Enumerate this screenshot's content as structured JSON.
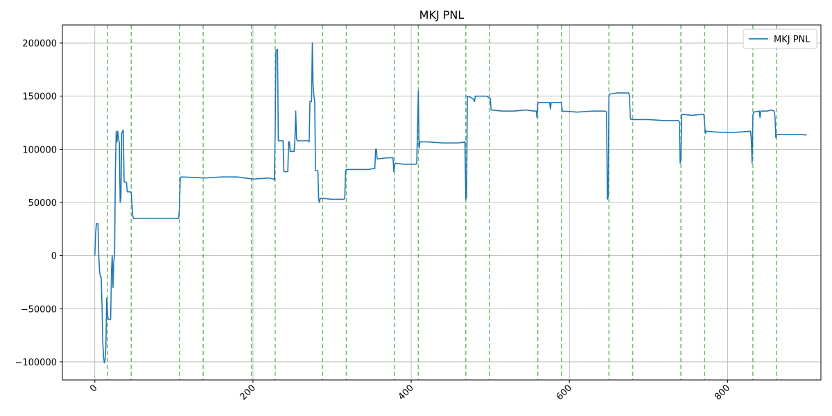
{
  "chart_data": {
    "type": "line",
    "title": "MKJ PNL",
    "xlabel": "",
    "ylabel": "",
    "xlim": [
      -41,
      918
    ],
    "ylim": [
      -117000,
      217000
    ],
    "grid": true,
    "legend": {
      "position": "top-right",
      "entries": [
        "MKJ PNL"
      ]
    },
    "x_ticks": [
      0,
      200,
      400,
      600,
      800
    ],
    "x_tick_labels": [
      "0",
      "200",
      "400",
      "600",
      "800"
    ],
    "y_ticks": [
      -100000,
      -50000,
      0,
      50000,
      100000,
      150000,
      200000
    ],
    "y_tick_labels": [
      "−100000",
      "−50000",
      "0",
      "50000",
      "100000",
      "150000",
      "200000"
    ],
    "vertical_markers": [
      16,
      46,
      107,
      137,
      198,
      228,
      288,
      318,
      379,
      409,
      469,
      499,
      560,
      590,
      650,
      680,
      741,
      771,
      832,
      862
    ],
    "series": [
      {
        "name": "MKJ PNL",
        "color": "#1f77b4",
        "points": [
          [
            0,
            0
          ],
          [
            1,
            20000
          ],
          [
            2,
            30000
          ],
          [
            4,
            30000
          ],
          [
            5,
            0
          ],
          [
            6,
            -15000
          ],
          [
            7,
            -20000
          ],
          [
            8,
            -20000
          ],
          [
            9,
            -45000
          ],
          [
            10,
            -80000
          ],
          [
            11,
            -95000
          ],
          [
            12,
            -101000
          ],
          [
            13,
            -98000
          ],
          [
            14,
            -85000
          ],
          [
            15,
            -40000
          ],
          [
            16,
            -55000
          ],
          [
            17,
            -60000
          ],
          [
            20,
            -60000
          ],
          [
            21,
            -15000
          ],
          [
            22,
            0
          ],
          [
            23,
            -30000
          ],
          [
            24,
            -5000
          ],
          [
            25,
            0
          ],
          [
            26,
            80000
          ],
          [
            27,
            117000
          ],
          [
            28,
            107000
          ],
          [
            29,
            117000
          ],
          [
            30,
            110000
          ],
          [
            31,
            106000
          ],
          [
            32,
            50000
          ],
          [
            33,
            55000
          ],
          [
            34,
            115000
          ],
          [
            35,
            117000
          ],
          [
            36,
            118000
          ],
          [
            37,
            70000
          ],
          [
            38,
            69000
          ],
          [
            40,
            69000
          ],
          [
            41,
            60000
          ],
          [
            45,
            60000
          ],
          [
            46,
            59000
          ],
          [
            48,
            37000
          ],
          [
            49,
            35000
          ],
          [
            60,
            35000
          ],
          [
            80,
            35000
          ],
          [
            100,
            35000
          ],
          [
            106,
            35000
          ],
          [
            107,
            45000
          ],
          [
            108,
            73000
          ],
          [
            109,
            74000
          ],
          [
            125,
            73500
          ],
          [
            140,
            73000
          ],
          [
            160,
            74000
          ],
          [
            180,
            74000
          ],
          [
            200,
            72000
          ],
          [
            220,
            73000
          ],
          [
            226,
            72000
          ],
          [
            227,
            71000
          ],
          [
            228,
            115000
          ],
          [
            229,
            193000
          ],
          [
            231,
            194000
          ],
          [
            232,
            108000
          ],
          [
            238,
            108000
          ],
          [
            239,
            79000
          ],
          [
            244,
            79000
          ],
          [
            245,
            107000
          ],
          [
            246,
            107000
          ],
          [
            247,
            98000
          ],
          [
            252,
            98000
          ],
          [
            253,
            110000
          ],
          [
            254,
            136000
          ],
          [
            255,
            110000
          ],
          [
            256,
            108000
          ],
          [
            270,
            108000
          ],
          [
            271,
            107000
          ],
          [
            272,
            145000
          ],
          [
            274,
            145000
          ],
          [
            275,
            200000
          ],
          [
            276,
            160000
          ],
          [
            277,
            150000
          ],
          [
            278,
            145000
          ],
          [
            279,
            80000
          ],
          [
            282,
            80000
          ],
          [
            283,
            53000
          ],
          [
            284,
            50000
          ],
          [
            285,
            54000
          ],
          [
            300,
            53000
          ],
          [
            315,
            53000
          ],
          [
            316,
            54000
          ],
          [
            317,
            80000
          ],
          [
            318,
            81000
          ],
          [
            330,
            81000
          ],
          [
            345,
            81000
          ],
          [
            354,
            82000
          ],
          [
            355,
            100000
          ],
          [
            356,
            100000
          ],
          [
            357,
            91000
          ],
          [
            370,
            92000
          ],
          [
            377,
            92000
          ],
          [
            378,
            79000
          ],
          [
            379,
            85000
          ],
          [
            380,
            87000
          ],
          [
            390,
            86000
          ],
          [
            400,
            86000
          ],
          [
            406,
            86000
          ],
          [
            407,
            87000
          ],
          [
            409,
            155000
          ],
          [
            410,
            101000
          ],
          [
            411,
            107000
          ],
          [
            420,
            107000
          ],
          [
            440,
            106000
          ],
          [
            460,
            106000
          ],
          [
            468,
            107000
          ],
          [
            469,
            53000
          ],
          [
            470,
            55000
          ],
          [
            471,
            150000
          ],
          [
            475,
            149000
          ],
          [
            479,
            147000
          ],
          [
            480,
            145000
          ],
          [
            481,
            150000
          ],
          [
            482,
            150000
          ],
          [
            495,
            150000
          ],
          [
            500,
            148000
          ],
          [
            501,
            137000
          ],
          [
            515,
            136000
          ],
          [
            530,
            136000
          ],
          [
            545,
            137000
          ],
          [
            555,
            136000
          ],
          [
            558,
            136000
          ],
          [
            559,
            130000
          ],
          [
            560,
            143000
          ],
          [
            561,
            144000
          ],
          [
            575,
            144000
          ],
          [
            576,
            138000
          ],
          [
            577,
            144000
          ],
          [
            590,
            144000
          ],
          [
            591,
            136000
          ],
          [
            610,
            135000
          ],
          [
            630,
            136000
          ],
          [
            645,
            136000
          ],
          [
            647,
            135000
          ],
          [
            648,
            53000
          ],
          [
            649,
            55000
          ],
          [
            650,
            150000
          ],
          [
            651,
            152000
          ],
          [
            660,
            153000
          ],
          [
            675,
            153000
          ],
          [
            676,
            150000
          ],
          [
            677,
            130000
          ],
          [
            678,
            128000
          ],
          [
            700,
            128000
          ],
          [
            720,
            127000
          ],
          [
            738,
            127000
          ],
          [
            739,
            126000
          ],
          [
            740,
            87000
          ],
          [
            741,
            90000
          ],
          [
            742,
            133000
          ],
          [
            755,
            132000
          ],
          [
            770,
            133000
          ],
          [
            771,
            123000
          ],
          [
            772,
            115000
          ],
          [
            773,
            117000
          ],
          [
            790,
            116000
          ],
          [
            810,
            116000
          ],
          [
            829,
            117000
          ],
          [
            830,
            110000
          ],
          [
            831,
            87000
          ],
          [
            832,
            132000
          ],
          [
            833,
            135000
          ],
          [
            840,
            136000
          ],
          [
            841,
            130000
          ],
          [
            842,
            136000
          ],
          [
            850,
            136000
          ],
          [
            855,
            137000
          ],
          [
            859,
            136000
          ],
          [
            860,
            130000
          ],
          [
            861,
            111000
          ],
          [
            862,
            114000
          ],
          [
            875,
            114000
          ],
          [
            890,
            114000
          ],
          [
            900,
            113500
          ]
        ]
      }
    ]
  }
}
